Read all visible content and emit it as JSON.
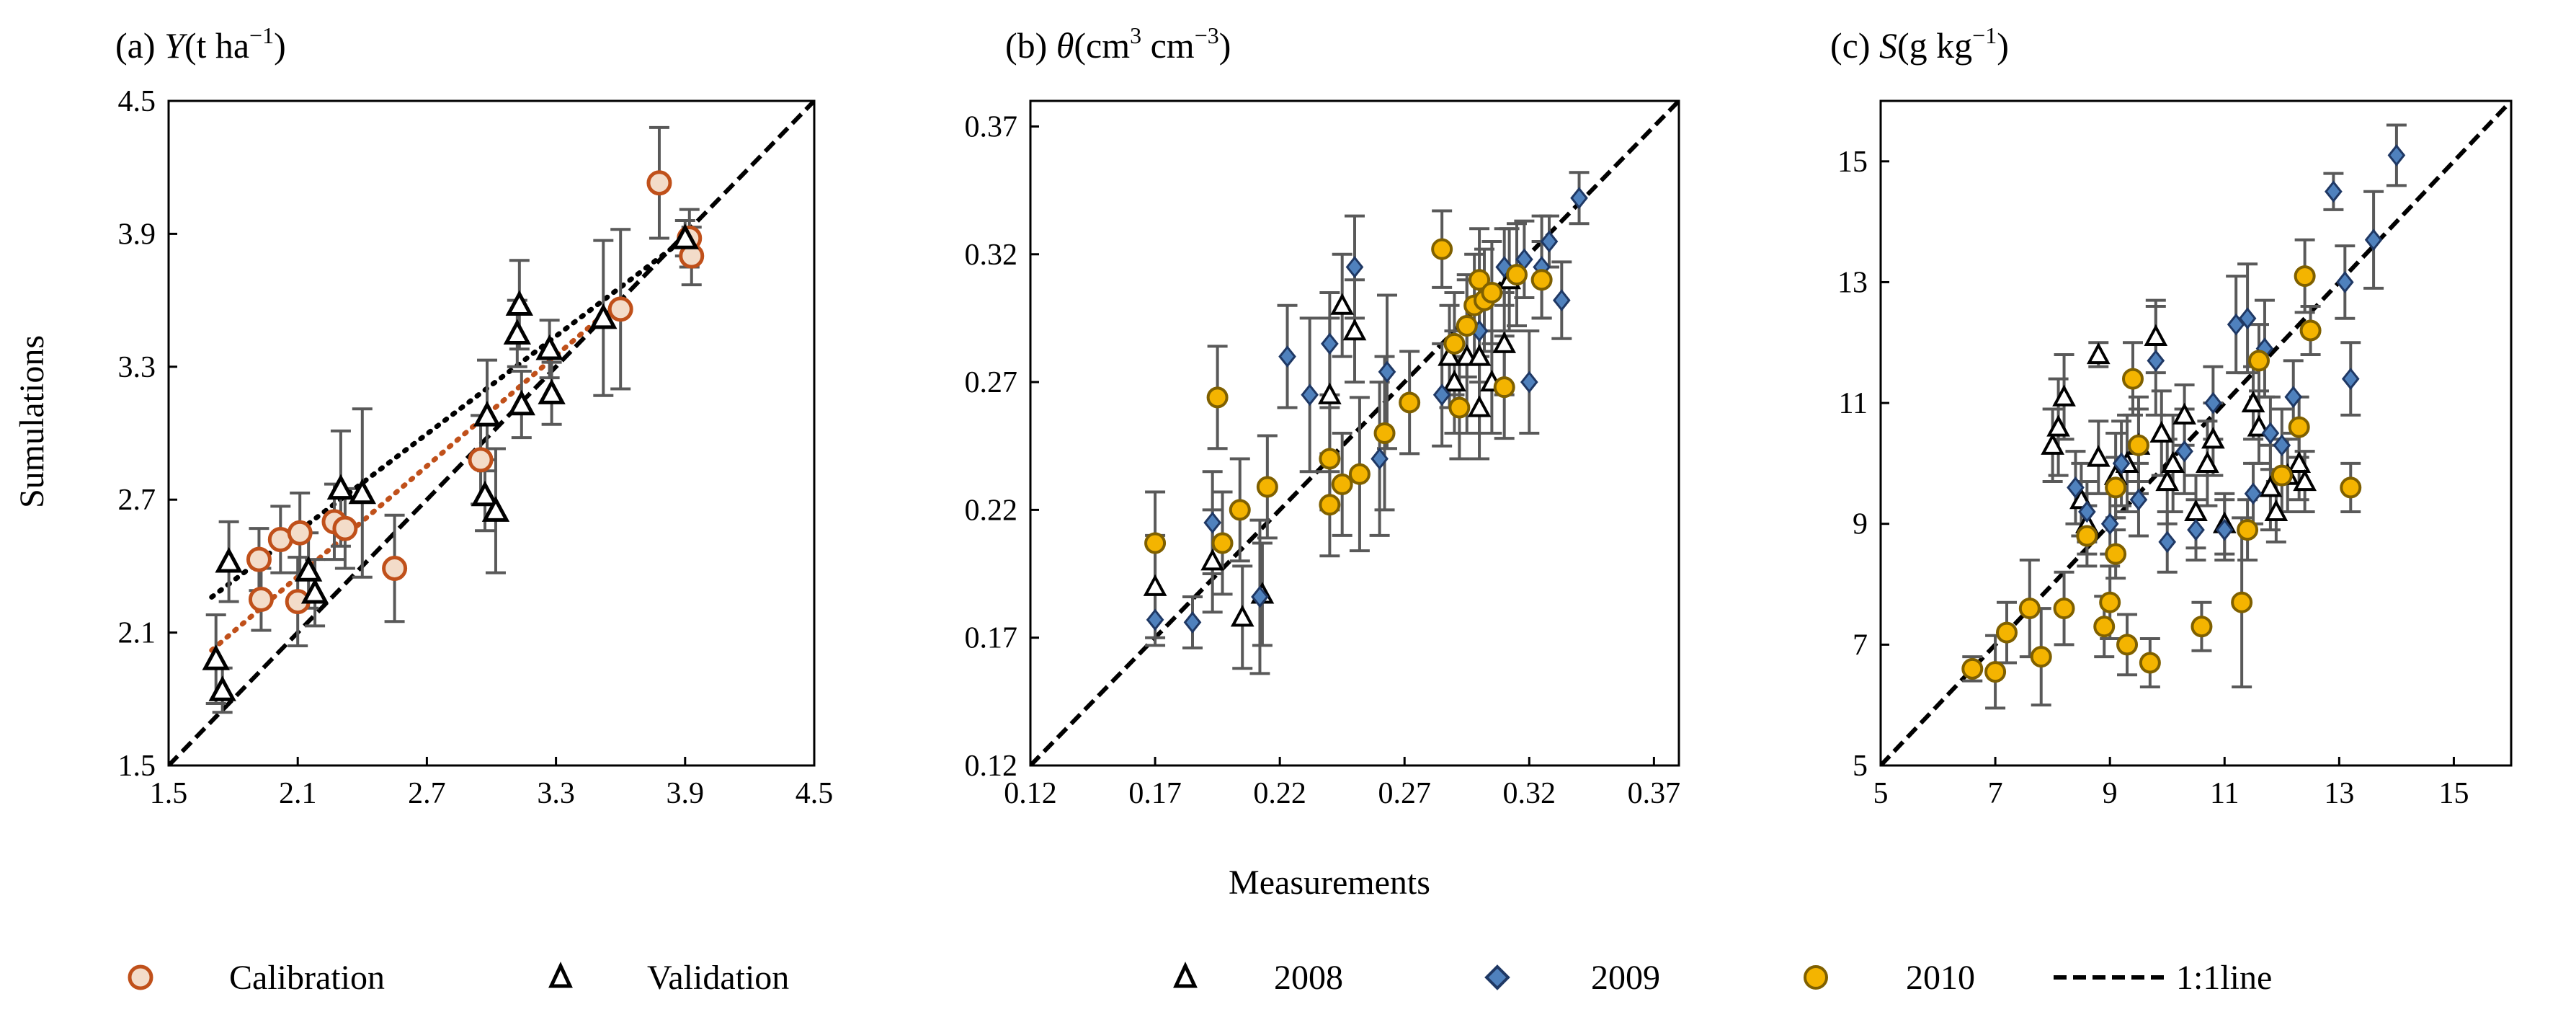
{
  "axis_labels": {
    "x": "Measurements",
    "y": "Sumulations"
  },
  "legend": {
    "calibration": "Calibration",
    "validation": "Validation",
    "y2008": "2008",
    "y2009": "2009",
    "y2010": "2010",
    "line": "1:1line"
  },
  "colors": {
    "calibration_fill": "#f3dcc9",
    "calibration_edge": "#c0501a",
    "s2009_fill": "#4f81bd",
    "s2009_edge": "#1f3864",
    "s2010_fill": "#f4b400",
    "s2010_edge": "#7f6000",
    "error_bar": "#595959",
    "trend_cal": "#c0501a"
  },
  "chart_data": [
    {
      "type": "scatter",
      "panel": "a",
      "title": {
        "prefix": "(a)",
        "var": "Y",
        "unit_a": "(t ha",
        "sup": "−1",
        "unit_b": ")"
      },
      "xlabel": "Measurements",
      "ylabel": "Sumulations",
      "xlim": [
        1.5,
        4.5
      ],
      "ylim": [
        1.5,
        4.5
      ],
      "ticks": [
        "1.5",
        "2.1",
        "2.7",
        "3.3",
        "3.9",
        "4.5"
      ],
      "reference_line": "1:1",
      "series": [
        {
          "name": "Calibration",
          "marker": "circle",
          "trend": [
            [
              1.7,
              2.02
            ],
            [
              3.6,
              3.6
            ]
          ],
          "points": [
            [
              1.92,
              2.43,
              0.14
            ],
            [
              1.93,
              2.25,
              0.14
            ],
            [
              2.02,
              2.52,
              0.15
            ],
            [
              2.11,
              2.55,
              0.18
            ],
            [
              2.1,
              2.24,
              0.2
            ],
            [
              2.27,
              2.6,
              0.17
            ],
            [
              2.32,
              2.57,
              0.18
            ],
            [
              2.55,
              2.39,
              0.24
            ],
            [
              2.95,
              2.88,
              0.2
            ],
            [
              3.6,
              3.56,
              0.36
            ],
            [
              3.78,
              4.13,
              0.25
            ],
            [
              3.92,
              3.88,
              0.13
            ],
            [
              3.93,
              3.8,
              0.13
            ]
          ]
        },
        {
          "name": "Validation",
          "marker": "triangle",
          "trend": [
            [
              1.7,
              2.26
            ],
            [
              3.9,
              3.88
            ]
          ],
          "points": [
            [
              1.72,
              1.98,
              0.2
            ],
            [
              1.75,
              1.84,
              0.1
            ],
            [
              1.78,
              2.42,
              0.18
            ],
            [
              2.15,
              2.38,
              0.17
            ],
            [
              2.18,
              2.28,
              0.15
            ],
            [
              2.3,
              2.75,
              0.26
            ],
            [
              2.4,
              2.73,
              0.38
            ],
            [
              2.97,
              2.72,
              0.16
            ],
            [
              2.98,
              3.08,
              0.25
            ],
            [
              3.02,
              2.65,
              0.28
            ],
            [
              3.12,
              3.45,
              0.15
            ],
            [
              3.13,
              3.58,
              0.2
            ],
            [
              3.14,
              3.13,
              0.15
            ],
            [
              3.27,
              3.38,
              0.13
            ],
            [
              3.28,
              3.18,
              0.14
            ],
            [
              3.52,
              3.52,
              0.35
            ],
            [
              3.9,
              3.88,
              0.08
            ]
          ]
        }
      ]
    },
    {
      "type": "scatter",
      "panel": "b",
      "title": {
        "prefix": "(b)",
        "var": "θ",
        "unit_a": "(cm",
        "sup": "3",
        "unit_b": " cm",
        "sup2": "−3",
        "unit_c": ")"
      },
      "xlim": [
        0.12,
        0.38
      ],
      "ylim": [
        0.12,
        0.38
      ],
      "ticks": [
        "0.12",
        "0.17",
        "0.22",
        "0.27",
        "0.32",
        "0.37"
      ],
      "reference_line": "1:1",
      "series": [
        {
          "name": "2008",
          "marker": "triangle",
          "points": [
            [
              0.17,
              0.19,
              0.02
            ],
            [
              0.193,
              0.2,
              0.02
            ],
            [
              0.205,
              0.178,
              0.02
            ],
            [
              0.213,
              0.187,
              0.02
            ],
            [
              0.24,
              0.265,
              0.03
            ],
            [
              0.245,
              0.3,
              0.02
            ],
            [
              0.25,
              0.29,
              0.02
            ],
            [
              0.288,
              0.28,
              0.02
            ],
            [
              0.29,
              0.27,
              0.02
            ],
            [
              0.295,
              0.28,
              0.03
            ],
            [
              0.3,
              0.28,
              0.03
            ],
            [
              0.305,
              0.27,
              0.02
            ],
            [
              0.31,
              0.285,
              0.02
            ],
            [
              0.312,
              0.31,
              0.02
            ],
            [
              0.3,
              0.26,
              0.02
            ]
          ]
        },
        {
          "name": "2009",
          "marker": "diamond",
          "points": [
            [
              0.17,
              0.177,
              0.01
            ],
            [
              0.185,
              0.176,
              0.01
            ],
            [
              0.193,
              0.215,
              0.02
            ],
            [
              0.212,
              0.186,
              0.03
            ],
            [
              0.223,
              0.28,
              0.02
            ],
            [
              0.232,
              0.265,
              0.03
            ],
            [
              0.24,
              0.285,
              0.02
            ],
            [
              0.25,
              0.315,
              0.02
            ],
            [
              0.26,
              0.24,
              0.03
            ],
            [
              0.263,
              0.274,
              0.03
            ],
            [
              0.285,
              0.265,
              0.02
            ],
            [
              0.3,
              0.29,
              0.02
            ],
            [
              0.31,
              0.315,
              0.015
            ],
            [
              0.318,
              0.318,
              0.015
            ],
            [
              0.32,
              0.27,
              0.02
            ],
            [
              0.325,
              0.315,
              0.02
            ],
            [
              0.328,
              0.325,
              0.01
            ],
            [
              0.333,
              0.302,
              0.015
            ],
            [
              0.34,
              0.342,
              0.01
            ]
          ]
        },
        {
          "name": "2010",
          "marker": "circle",
          "points": [
            [
              0.17,
              0.207,
              0.02
            ],
            [
              0.195,
              0.264,
              0.02
            ],
            [
              0.197,
              0.207,
              0.02
            ],
            [
              0.204,
              0.22,
              0.02
            ],
            [
              0.215,
              0.229,
              0.02
            ],
            [
              0.24,
              0.24,
              0.02
            ],
            [
              0.24,
              0.222,
              0.02
            ],
            [
              0.245,
              0.23,
              0.02
            ],
            [
              0.252,
              0.234,
              0.03
            ],
            [
              0.262,
              0.25,
              0.03
            ],
            [
              0.272,
              0.262,
              0.02
            ],
            [
              0.285,
              0.322,
              0.015
            ],
            [
              0.29,
              0.285,
              0.02
            ],
            [
              0.292,
              0.26,
              0.02
            ],
            [
              0.295,
              0.292,
              0.02
            ],
            [
              0.298,
              0.3,
              0.02
            ],
            [
              0.3,
              0.31,
              0.02
            ],
            [
              0.302,
              0.302,
              0.02
            ],
            [
              0.305,
              0.305,
              0.02
            ],
            [
              0.31,
              0.268,
              0.02
            ],
            [
              0.315,
              0.312,
              0.02
            ],
            [
              0.325,
              0.31,
              0.015
            ]
          ]
        }
      ]
    },
    {
      "type": "scatter",
      "panel": "c",
      "title": {
        "prefix": "(c)",
        "var": "S",
        "unit_a": "(g kg",
        "sup": "−1",
        "unit_b": ")"
      },
      "xlim": [
        5,
        16
      ],
      "ylim": [
        5,
        16
      ],
      "ticks": [
        "5",
        "7",
        "9",
        "11",
        "13",
        "15"
      ],
      "reference_line": "1:1",
      "series": [
        {
          "name": "2008",
          "marker": "triangle",
          "points": [
            [
              8.0,
              10.3,
              0.6
            ],
            [
              8.1,
              10.6,
              0.8
            ],
            [
              8.2,
              11.1,
              0.7
            ],
            [
              8.5,
              9.4,
              0.6
            ],
            [
              8.6,
              9.0,
              0.5
            ],
            [
              8.8,
              11.8,
              0.2
            ],
            [
              8.8,
              10.1,
              0.6
            ],
            [
              9.1,
              9.8,
              0.7
            ],
            [
              9.3,
              10.0,
              0.8
            ],
            [
              9.5,
              10.3,
              0.8
            ],
            [
              9.8,
              12.1,
              0.6
            ],
            [
              9.9,
              10.5,
              0.7
            ],
            [
              10.0,
              9.7,
              0.7
            ],
            [
              10.1,
              10.0,
              0.8
            ],
            [
              10.3,
              10.8,
              0.5
            ],
            [
              10.5,
              9.2,
              0.6
            ],
            [
              10.7,
              10.0,
              0.7
            ],
            [
              10.8,
              10.4,
              0.6
            ],
            [
              11.0,
              9.0,
              0.5
            ],
            [
              11.5,
              11.0,
              0.6
            ],
            [
              11.6,
              10.6,
              0.6
            ],
            [
              11.8,
              9.6,
              0.7
            ],
            [
              11.9,
              9.2,
              0.5
            ],
            [
              12.1,
              9.8,
              0.6
            ],
            [
              12.3,
              10.0,
              0.6
            ],
            [
              12.4,
              9.7,
              0.5
            ]
          ]
        },
        {
          "name": "2009",
          "marker": "diamond",
          "points": [
            [
              8.4,
              9.6,
              0.6
            ],
            [
              8.6,
              9.2,
              0.5
            ],
            [
              9.0,
              9.0,
              0.5
            ],
            [
              9.2,
              10.0,
              0.7
            ],
            [
              9.5,
              9.4,
              0.6
            ],
            [
              9.8,
              11.7,
              0.9
            ],
            [
              10.0,
              8.7,
              0.5
            ],
            [
              10.3,
              10.2,
              0.7
            ],
            [
              10.5,
              8.9,
              0.5
            ],
            [
              10.8,
              11.0,
              0.6
            ],
            [
              11.0,
              8.9,
              0.5
            ],
            [
              11.2,
              12.3,
              0.8
            ],
            [
              11.4,
              12.4,
              0.9
            ],
            [
              11.5,
              9.5,
              0.5
            ],
            [
              11.7,
              11.9,
              0.8
            ],
            [
              11.8,
              10.5,
              0.6
            ],
            [
              12.0,
              10.3,
              0.6
            ],
            [
              12.2,
              11.1,
              0.6
            ],
            [
              12.9,
              14.5,
              0.3
            ],
            [
              13.1,
              13.0,
              0.6
            ],
            [
              13.2,
              11.4,
              0.6
            ],
            [
              13.6,
              13.7,
              0.8
            ],
            [
              14.0,
              15.1,
              0.5
            ]
          ]
        },
        {
          "name": "2010",
          "marker": "circle",
          "points": [
            [
              6.6,
              6.6,
              0.2
            ],
            [
              7.0,
              6.55,
              0.6
            ],
            [
              7.2,
              7.2,
              0.5
            ],
            [
              7.6,
              7.6,
              0.8
            ],
            [
              7.8,
              6.8,
              0.8
            ],
            [
              8.2,
              7.6,
              0.6
            ],
            [
              8.6,
              8.8,
              0.5
            ],
            [
              8.9,
              7.3,
              0.5
            ],
            [
              9.0,
              7.7,
              0.6
            ],
            [
              9.1,
              9.6,
              0.5
            ],
            [
              9.1,
              8.5,
              0.4
            ],
            [
              9.3,
              7.0,
              0.5
            ],
            [
              9.4,
              11.4,
              0.6
            ],
            [
              9.5,
              10.3,
              0.6
            ],
            [
              9.7,
              6.7,
              0.4
            ],
            [
              10.6,
              7.3,
              0.4
            ],
            [
              11.3,
              7.7,
              1.4
            ],
            [
              11.4,
              8.9,
              0.5
            ],
            [
              11.6,
              11.7,
              0.6
            ],
            [
              12.0,
              9.8,
              0.6
            ],
            [
              12.3,
              10.6,
              0.5
            ],
            [
              12.4,
              13.1,
              0.6
            ],
            [
              12.5,
              12.2,
              0.4
            ],
            [
              13.2,
              9.6,
              0.4
            ]
          ]
        }
      ]
    }
  ]
}
